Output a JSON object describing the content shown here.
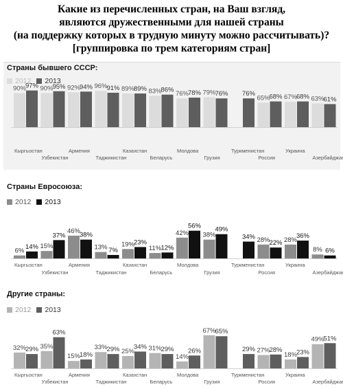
{
  "title_lines": [
    "Какие из перечисленных стран, на Ваш взгляд,",
    "являются дружественными для нашей страны",
    "(на поддержку которых в трудную минуту можно рассчитывать)?",
    "[группировка по трем категориям стран]"
  ],
  "colors": {
    "c2012_p1": "#dcdcdc",
    "c2013_p1": "#5e5e5e",
    "c2012_p2": "#8c8c8c",
    "c2013_p2": "#111111",
    "c2012_p3": "#b4b4b4",
    "c2013_p3": "#5e5e5e"
  },
  "chart_data": [
    {
      "type": "bar",
      "title": "Страны бывшего СССР:",
      "categories": [
        "Кыргызстан",
        "Узбекистан",
        "Армения",
        "Таджикистан",
        "Казахстан",
        "Беларусь",
        "Молдова",
        "Грузия",
        "Туркменистан",
        "Россия",
        "Украина",
        "Азербайджан"
      ],
      "series": [
        {
          "name": "2012",
          "values": [
            90,
            90,
            92,
            96,
            89,
            83,
            76,
            79,
            null,
            65,
            67,
            63
          ]
        },
        {
          "name": "2013",
          "values": [
            97,
            95,
            94,
            91,
            89,
            86,
            78,
            76,
            76,
            68,
            68,
            61
          ]
        }
      ],
      "data_labels": [
        [
          "90%",
          "90%",
          "92%",
          "96%",
          "89%",
          "83%",
          "76%",
          "79%",
          "",
          "65%",
          "67%",
          "63%"
        ],
        [
          "97%",
          "95%",
          "94%",
          "91%",
          "89%",
          "86%",
          "78%",
          "76%",
          "76%",
          "68%",
          "68%",
          "61%"
        ]
      ],
      "ylim": [
        0,
        100
      ],
      "legend_position": "top-left"
    },
    {
      "type": "bar",
      "title": "Страны Евросоюза:",
      "categories": [
        "Кыргызстан",
        "Узбекистан",
        "Армения",
        "Таджикистан",
        "Казахстан",
        "Беларусь",
        "Молдова",
        "Грузия",
        "Туркменистан",
        "Россия",
        "Украина",
        "Азербайджан"
      ],
      "series": [
        {
          "name": "2012",
          "values": [
            6,
            15,
            46,
            13,
            19,
            11,
            42,
            38,
            null,
            28,
            28,
            8
          ]
        },
        {
          "name": "2013",
          "values": [
            14,
            37,
            38,
            7,
            23,
            12,
            56,
            49,
            34,
            22,
            36,
            6
          ]
        }
      ],
      "data_labels": [
        [
          "6%",
          "15%",
          "46%",
          "13%",
          "19%",
          "11%",
          "42%",
          "38%",
          "",
          "28%",
          "28%",
          "8%"
        ],
        [
          "14%",
          "37%",
          "38%",
          "7%",
          "23%",
          "12%",
          "56%",
          "49%",
          "34%",
          "22%",
          "36%",
          "6%"
        ]
      ],
      "ylim": [
        0,
        100
      ],
      "legend_position": "top-left"
    },
    {
      "type": "bar",
      "title": "Другие страны:",
      "categories": [
        "Кыргызстан",
        "Узбекистан",
        "Армения",
        "Таджикистан",
        "Казахстан",
        "Беларусь",
        "Молдова",
        "Грузия",
        "Туркменистан",
        "Россия",
        "Украина",
        "Азербайджан"
      ],
      "series": [
        {
          "name": "2012",
          "values": [
            32,
            35,
            15,
            33,
            25,
            31,
            14,
            67,
            null,
            27,
            18,
            49
          ]
        },
        {
          "name": "2013",
          "values": [
            29,
            63,
            18,
            29,
            34,
            29,
            26,
            65,
            29,
            28,
            23,
            51
          ]
        }
      ],
      "data_labels": [
        [
          "32%",
          "35%",
          "15%",
          "33%",
          "25%",
          "31%",
          "14%",
          "67%",
          "",
          "27%",
          "18%",
          "49%"
        ],
        [
          "29%",
          "63%",
          "18%",
          "29%",
          "34%",
          "29%",
          "26%",
          "65%",
          "29%",
          "28%",
          "23%",
          "51%"
        ]
      ],
      "ylim": [
        0,
        100
      ],
      "legend_position": "top-left"
    }
  ]
}
